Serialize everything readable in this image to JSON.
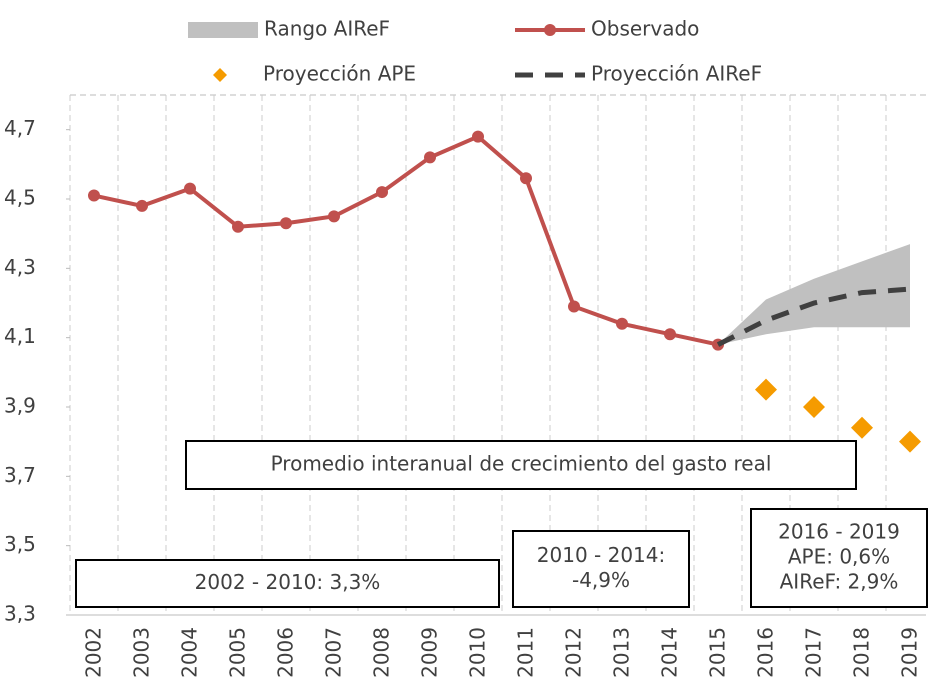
{
  "chart_data": {
    "type": "line",
    "categories": [
      "2002",
      "2003",
      "2004",
      "2005",
      "2006",
      "2007",
      "2008",
      "2009",
      "2010",
      "2011",
      "2012",
      "2013",
      "2014",
      "2015",
      "2016",
      "2017",
      "2018",
      "2019"
    ],
    "ylim": [
      3.3,
      4.8
    ],
    "yticks": [
      {
        "value": 3.3,
        "label": "3,3"
      },
      {
        "value": 3.5,
        "label": "3,5"
      },
      {
        "value": 3.7,
        "label": "3,7"
      },
      {
        "value": 3.9,
        "label": "3,9"
      },
      {
        "value": 4.1,
        "label": "4,1"
      },
      {
        "value": 4.3,
        "label": "4,3"
      },
      {
        "value": 4.5,
        "label": "4,5"
      },
      {
        "value": 4.7,
        "label": "4,7"
      }
    ],
    "grid": true,
    "range": {
      "name": "Rango AIReF",
      "color": "#c0c0c0",
      "lower": [
        null,
        null,
        null,
        null,
        null,
        null,
        null,
        null,
        null,
        null,
        null,
        null,
        null,
        4.08,
        4.11,
        4.13,
        4.13,
        4.13
      ],
      "upper": [
        null,
        null,
        null,
        null,
        null,
        null,
        null,
        null,
        null,
        null,
        null,
        null,
        null,
        4.08,
        4.21,
        4.27,
        4.32,
        4.37
      ]
    },
    "series": [
      {
        "name": "Observado",
        "color": "#c0504d",
        "style": "line-marker",
        "values": [
          4.51,
          4.48,
          4.53,
          4.42,
          4.43,
          4.45,
          4.52,
          4.62,
          4.68,
          4.56,
          4.19,
          4.14,
          4.11,
          4.08,
          null,
          null,
          null,
          null
        ]
      },
      {
        "name": "Proyección APE",
        "color": "#f59b00",
        "style": "diamond",
        "values": [
          null,
          null,
          null,
          null,
          null,
          null,
          null,
          null,
          null,
          null,
          null,
          null,
          null,
          null,
          3.95,
          3.9,
          3.84,
          3.8
        ]
      },
      {
        "name": "Proyección AIReF",
        "color": "#404040",
        "style": "dashed",
        "values": [
          null,
          null,
          null,
          null,
          null,
          null,
          null,
          null,
          null,
          null,
          null,
          null,
          null,
          4.08,
          4.15,
          4.2,
          4.23,
          4.24
        ]
      }
    ],
    "annotations": [
      {
        "text": [
          "Promedio interanual de crecimiento del gasto real"
        ]
      },
      {
        "text": [
          "2002 - 2010: 3,3%"
        ]
      },
      {
        "text": [
          "2010 - 2014:",
          "-4,9%"
        ]
      },
      {
        "text": [
          "2016 - 2019",
          "APE: 0,6%",
          "AIReF: 2,9%"
        ]
      }
    ]
  }
}
